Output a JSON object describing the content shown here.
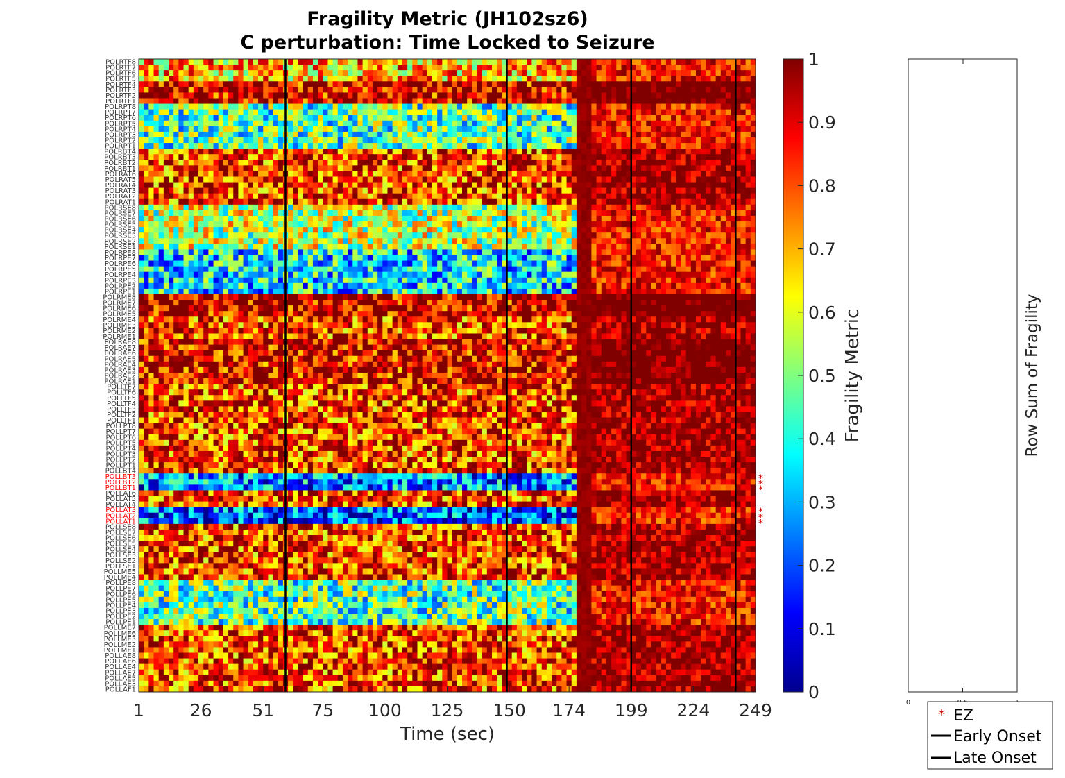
{
  "chart_data": {
    "type": "heatmap",
    "title": "Fragility Metric (JH102sz6)",
    "subtitle": "C perturbation:  Time Locked to Seizure",
    "xlabel": "Time (sec)",
    "xticks": [
      "1",
      "26",
      "51",
      "75",
      "100",
      "125",
      "150",
      "174",
      "199",
      "224",
      "249"
    ],
    "xlim": [
      1,
      249
    ],
    "colorbar": {
      "label": "Fragility Metric",
      "range": [
        0,
        1
      ],
      "ticks": [
        "0",
        "0.1",
        "0.2",
        "0.3",
        "0.4",
        "0.5",
        "0.6",
        "0.7",
        "0.8",
        "0.9",
        "1"
      ]
    },
    "channels": [
      "POLRTF8",
      "POLRTF7",
      "POLRTF6",
      "POLRTF5",
      "POLRTF4",
      "POLRTF3",
      "POLRTF2",
      "POLRTF1",
      "POLRPT8",
      "POLRPT7",
      "POLRPT6",
      "POLRPT5",
      "POLRPT4",
      "POLRPT3",
      "POLRPT2",
      "POLRPT1",
      "POLRBT4",
      "POLRBT3",
      "POLRBT2",
      "POLRBT1",
      "POLRAT6",
      "POLRAT5",
      "POLRAT4",
      "POLRAT3",
      "POLRAT2",
      "POLRAT1",
      "POLRSE8",
      "POLRSE7",
      "POLRSE6",
      "POLRSE5",
      "POLRSE4",
      "POLRSE3",
      "POLRSE2",
      "POLRSE1",
      "POLRPE8",
      "POLRPE7",
      "POLRPE6",
      "POLRPE5",
      "POLRPE4",
      "POLRPE3",
      "POLRPE2",
      "POLRPE1",
      "POLRME8",
      "POLRME7",
      "POLRME6",
      "POLRME5",
      "POLRME4",
      "POLRME3",
      "POLRME2",
      "POLRME1",
      "POLRAE8",
      "POLRAE7",
      "POLRAE6",
      "POLRAE5",
      "POLRAE4",
      "POLRAE3",
      "POLRAE2",
      "POLRAE1",
      "POLLTF7",
      "POLLTF6",
      "POLLTF5",
      "POLLTF4",
      "POLLTF3",
      "POLLTF2",
      "POLLTF1",
      "POLLPT8",
      "POLLPT7",
      "POLLPT6",
      "POLLPT5",
      "POLLPT4",
      "POLLPT3",
      "POLLPT2",
      "POLLPT1",
      "POLLBT4",
      "POLLBT3",
      "POLLBT2",
      "POLLBT1",
      "POLLAT6",
      "POLLAT5",
      "POLLAT4",
      "POLLAT3",
      "POLLAT2",
      "POLLAT1",
      "POLLSE8",
      "POLLSE7",
      "POLLSE6",
      "POLLSE5",
      "POLLSE4",
      "POLLSE3",
      "POLLSE2",
      "POLLSE1",
      "POLLME5",
      "POLLME4",
      "POLLPE8",
      "POLLPE7",
      "POLLPE6",
      "POLLPE5",
      "POLLPE4",
      "POLLPE3",
      "POLLPE2",
      "POLLPE1",
      "POLLME7",
      "POLLME6",
      "POLLME3",
      "POLLME2",
      "POLLME1",
      "POLLAE8",
      "POLLAE6",
      "POLLAE4",
      "POLLAE7",
      "POLLAE5",
      "POLLAE3",
      "POLLAF1"
    ],
    "ez_channels": [
      "POLLBT3",
      "POLLBT2",
      "POLLBT1",
      "POLLAT3",
      "POLLAT2",
      "POLLAT1"
    ],
    "vertical_lines_sec": [
      60,
      149,
      199,
      241
    ],
    "row_profiles": [
      {
        "channels": [
          "POLRTF8",
          "POLRTF7",
          "POLRTF6",
          "POLRTF5"
        ],
        "mean_fragility": 0.7
      },
      {
        "channels": [
          "POLRTF4",
          "POLRTF3",
          "POLRTF2",
          "POLRTF1"
        ],
        "mean_fragility": 0.92
      },
      {
        "channels": [
          "POLRPT8",
          "POLRPT7",
          "POLRPT6",
          "POLRPT5",
          "POLRPT4",
          "POLRPT3",
          "POLRPT2",
          "POLRPT1"
        ],
        "mean_fragility": 0.45
      },
      {
        "channels": [
          "POLRSE8",
          "POLRSE7",
          "POLRSE6",
          "POLRSE5",
          "POLRSE4",
          "POLRSE3",
          "POLRSE2",
          "POLRSE1"
        ],
        "mean_fragility": 0.55
      },
      {
        "channels": [
          "POLRPE8",
          "POLRPE7",
          "POLRPE6",
          "POLRPE5",
          "POLRPE4",
          "POLRPE3",
          "POLRPE2",
          "POLRPE1"
        ],
        "mean_fragility": 0.35
      },
      {
        "channels": [
          "POLRME8",
          "POLRME7",
          "POLRME6",
          "POLRME5"
        ],
        "mean_fragility": 0.93
      },
      {
        "channels": [
          "POLRAE8",
          "POLRAE7",
          "POLRAE6",
          "POLRAE5",
          "POLRAE4",
          "POLRAE3",
          "POLRAE2",
          "POLRAE1"
        ],
        "mean_fragility": 0.9
      },
      {
        "channels": [
          "POLLBT3",
          "POLLBT2",
          "POLLBT1"
        ],
        "mean_fragility": 0.25
      },
      {
        "channels": [
          "POLLAT3",
          "POLLAT2",
          "POLLAT1"
        ],
        "mean_fragility": 0.2
      },
      {
        "channels": [
          "POLLPE8",
          "POLLPE7",
          "POLLPE6",
          "POLLPE5",
          "POLLPE4",
          "POLLPE3",
          "POLLPE2",
          "POLLPE1"
        ],
        "mean_fragility": 0.45
      }
    ],
    "side_panel": {
      "ylabel": "Row Sum of Fragility",
      "xticks": [
        "0",
        "0.5",
        "1"
      ],
      "xlim": [
        0,
        1
      ]
    },
    "legend": {
      "placement": "bottom-right",
      "entries": [
        {
          "label": "EZ",
          "marker": "*",
          "color": "#cc0000"
        },
        {
          "label": "Early Onset",
          "marker": "line",
          "color": "#000000"
        },
        {
          "label": "Late Onset",
          "marker": "line",
          "color": "#000000"
        }
      ]
    }
  }
}
